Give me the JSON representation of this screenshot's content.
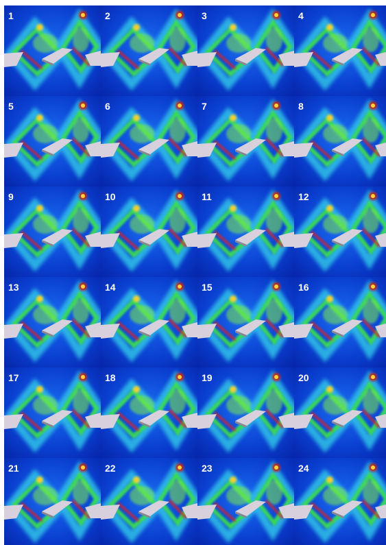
{
  "panels": [
    "1",
    "2",
    "3",
    "4",
    "5",
    "6",
    "7",
    "8",
    "9",
    "10",
    "11",
    "12",
    "13",
    "14",
    "15",
    "16",
    "17",
    "18",
    "19",
    "20",
    "21",
    "22",
    "23",
    "24"
  ]
}
